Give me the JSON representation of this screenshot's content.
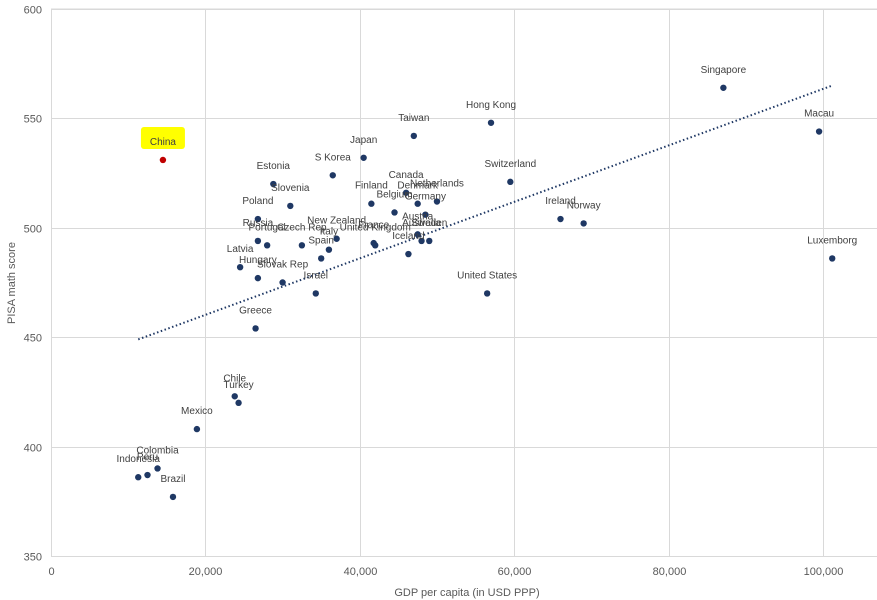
{
  "chart_data": {
    "type": "scatter",
    "xlabel": "GDP per capita (in USD PPP)",
    "ylabel": "PISA math score",
    "xlim": [
      0,
      107000
    ],
    "ylim": [
      350,
      600
    ],
    "x_ticks": [
      0,
      20000,
      40000,
      60000,
      80000,
      100000
    ],
    "x_tick_labels": [
      "0",
      "20,000",
      "40,000",
      "60,000",
      "80,000",
      "100,000"
    ],
    "y_ticks": [
      350,
      400,
      450,
      500,
      550,
      600
    ],
    "y_tick_labels": [
      "350",
      "400",
      "450",
      "500",
      "550",
      "600"
    ],
    "grid": true,
    "trendline": {
      "style": "dotted",
      "x": [
        11300,
        101200
      ],
      "y": [
        449,
        565
      ]
    },
    "colors": {
      "point": "#1f3864",
      "highlight_point": "#c00000",
      "highlight_bg": "#ffff00",
      "trendline": "#1f3864",
      "grid": "#d9d9d9"
    },
    "points": [
      {
        "label": "China",
        "x": 14500,
        "y": 531,
        "highlight": true
      },
      {
        "label": "Singapore",
        "x": 87100,
        "y": 564
      },
      {
        "label": "Macau",
        "x": 99500,
        "y": 544
      },
      {
        "label": "Luxemborg",
        "x": 101200,
        "y": 486
      },
      {
        "label": "Hong Kong",
        "x": 57000,
        "y": 548
      },
      {
        "label": "Taiwan",
        "x": 47000,
        "y": 542
      },
      {
        "label": "Japan",
        "x": 40500,
        "y": 532
      },
      {
        "label": "S Korea",
        "x": 36500,
        "y": 524
      },
      {
        "label": "Switzerland",
        "x": 59500,
        "y": 521
      },
      {
        "label": "Estonia",
        "x": 28800,
        "y": 520
      },
      {
        "label": "Canada",
        "x": 46000,
        "y": 516
      },
      {
        "label": "Netherlands",
        "x": 50000,
        "y": 512
      },
      {
        "label": "Denmark",
        "x": 47500,
        "y": 511
      },
      {
        "label": "Finland",
        "x": 41500,
        "y": 511
      },
      {
        "label": "Slovenia",
        "x": 31000,
        "y": 510
      },
      {
        "label": "Belgium",
        "x": 44500,
        "y": 507
      },
      {
        "label": "Germany",
        "x": 48500,
        "y": 506
      },
      {
        "label": "Poland",
        "x": 26800,
        "y": 504
      },
      {
        "label": "Ireland",
        "x": 66000,
        "y": 504
      },
      {
        "label": "Norway",
        "x": 69000,
        "y": 502
      },
      {
        "label": "Austria",
        "x": 47500,
        "y": 497
      },
      {
        "label": "Australia",
        "x": 48000,
        "y": 494
      },
      {
        "label": "Sweden",
        "x": 49000,
        "y": 494
      },
      {
        "label": "New Zealand",
        "x": 37000,
        "y": 495
      },
      {
        "label": "Russia",
        "x": 26800,
        "y": 494
      },
      {
        "label": "France",
        "x": 41800,
        "y": 493
      },
      {
        "label": "United Kingdom",
        "x": 42000,
        "y": 492
      },
      {
        "label": "Portugal",
        "x": 28000,
        "y": 492
      },
      {
        "label": "Czech Rep",
        "x": 32500,
        "y": 492
      },
      {
        "label": "Italy",
        "x": 36000,
        "y": 490
      },
      {
        "label": "Iceland",
        "x": 46300,
        "y": 488
      },
      {
        "label": "Spain",
        "x": 35000,
        "y": 486
      },
      {
        "label": "Latvia",
        "x": 24500,
        "y": 482
      },
      {
        "label": "Hungary",
        "x": 26800,
        "y": 477
      },
      {
        "label": "Slovak Rep",
        "x": 30000,
        "y": 475
      },
      {
        "label": "United States",
        "x": 56500,
        "y": 470
      },
      {
        "label": "Israel",
        "x": 34300,
        "y": 470
      },
      {
        "label": "Greece",
        "x": 26500,
        "y": 454
      },
      {
        "label": "Chile",
        "x": 23800,
        "y": 423
      },
      {
        "label": "Turkey",
        "x": 24300,
        "y": 420
      },
      {
        "label": "Mexico",
        "x": 18900,
        "y": 408
      },
      {
        "label": "Colombia",
        "x": 13800,
        "y": 390
      },
      {
        "label": "Peru",
        "x": 12500,
        "y": 387
      },
      {
        "label": "Indonesia",
        "x": 11300,
        "y": 386
      },
      {
        "label": "Brazil",
        "x": 15800,
        "y": 377
      }
    ]
  }
}
